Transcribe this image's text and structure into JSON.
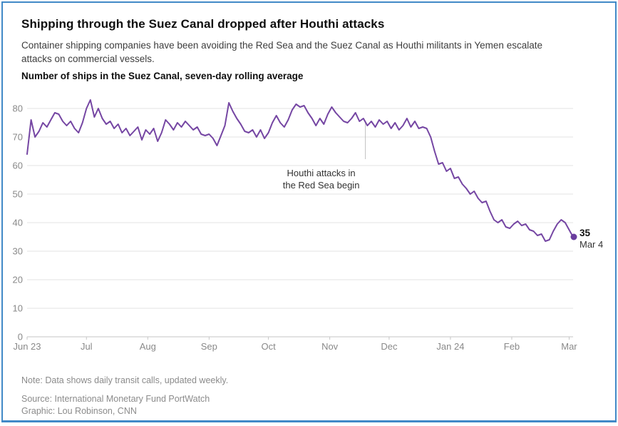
{
  "header": {
    "title": "Shipping through the Suez Canal dropped after Houthi attacks",
    "subtitle": "Container shipping companies have been avoiding the Red Sea and the Suez Canal as Houthi militants in Yemen escalate attacks on commercial vessels.",
    "chart_label": "Number of ships in the Suez Canal, seven-day rolling average"
  },
  "footer": {
    "note": "Note: Data shows daily transit calls, updated weekly.",
    "source": "Source: International Monetary Fund PortWatch",
    "credit": "Graphic: Lou Robinson, CNN"
  },
  "colors": {
    "line": "#7546a3",
    "dot": "#6a3d9e",
    "frame_border": "#4189c7",
    "grid": "#e3e3e3",
    "axis": "#c6c6c6",
    "tick_label": "#898989",
    "annotation_line": "#c0c0c0",
    "annotation_text": "#333333",
    "end_value_label": "#111111",
    "end_date_label": "#333333"
  },
  "chart_data": {
    "type": "line",
    "title": "Number of ships in the Suez Canal, seven-day rolling average",
    "xlabel": "",
    "ylabel": "",
    "ylim": [
      0,
      80
    ],
    "y_ticks": [
      0,
      10,
      20,
      30,
      40,
      50,
      60,
      70,
      80
    ],
    "grid": "horizontal",
    "legend": "none",
    "span_days": 276,
    "interval_days": 2,
    "x_ticks": [
      {
        "label": "Jun 23",
        "day": 0
      },
      {
        "label": "Jul",
        "day": 30
      },
      {
        "label": "Aug",
        "day": 61
      },
      {
        "label": "Sep",
        "day": 92
      },
      {
        "label": "Oct",
        "day": 122
      },
      {
        "label": "Nov",
        "day": 153
      },
      {
        "label": "Dec",
        "day": 183
      },
      {
        "label": "Jan 24",
        "day": 214
      },
      {
        "label": "Feb",
        "day": 245
      },
      {
        "label": "Mar",
        "day": 274
      }
    ],
    "annotation": {
      "line1": "Houthi attacks in",
      "line2": "the Red Sea begin",
      "day": 171
    },
    "end_label": {
      "value": "35",
      "date": "Mar 4"
    },
    "series_name": "Ships in the Suez Canal (7-day rolling average)",
    "values": [
      64,
      76,
      70,
      72,
      75,
      73.5,
      76,
      78.5,
      78,
      75.5,
      74,
      75.5,
      73,
      71.5,
      75,
      80,
      83,
      77,
      80,
      76.5,
      74.5,
      75.5,
      73,
      74.5,
      71.5,
      73,
      70.5,
      72,
      73.5,
      69,
      72.5,
      71,
      73,
      68.5,
      71.5,
      76,
      74.5,
      72.5,
      75,
      73.5,
      75.5,
      74,
      72.5,
      73.5,
      71,
      70.5,
      71,
      69.5,
      67,
      70.5,
      74,
      82,
      79,
      76.5,
      74.5,
      72,
      71.5,
      72.5,
      70,
      72.5,
      69.5,
      71.5,
      75,
      77.5,
      75,
      73.5,
      76,
      79.5,
      81.5,
      80.5,
      81,
      78.5,
      76.5,
      74,
      76.5,
      74.5,
      78,
      80.5,
      78.5,
      77,
      75.5,
      75,
      76.5,
      78.5,
      75.5,
      76.5,
      74,
      75.5,
      73.5,
      76,
      74.5,
      75.5,
      73,
      75,
      72.5,
      74,
      76.5,
      73.5,
      75.5,
      73,
      73.5,
      73,
      70,
      65,
      60.5,
      61,
      58,
      59,
      55.5,
      56,
      53.5,
      52,
      50,
      51,
      48.5,
      47,
      47.5,
      44,
      41,
      40,
      41,
      38.5,
      38,
      39.5,
      40.5,
      39,
      39.5,
      37.5,
      37,
      35.5,
      36,
      33.5,
      34,
      37,
      39.5,
      41,
      40,
      37.5,
      35
    ]
  }
}
